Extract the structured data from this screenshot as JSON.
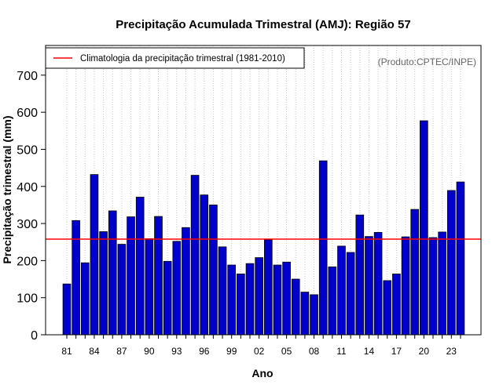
{
  "chart_data": {
    "type": "bar",
    "title": "Precipitação Acumulada Trimestral (AMJ): Região 57",
    "xlabel": "Ano",
    "ylabel": "Precipitação trimestral (mm)",
    "source_note": "(Produto:CPTEC/INPE)",
    "ylim": [
      0,
      780
    ],
    "y_ticks": [
      0,
      100,
      200,
      300,
      400,
      500,
      600,
      700
    ],
    "grid": "vertical dotted",
    "legend_position": "top-left",
    "legend": [
      {
        "label": "Climatologia da precipitação trimestral (1981-2010)",
        "color": "#ff0000",
        "kind": "line"
      }
    ],
    "bar_color": "#0000cd",
    "climatology": 258,
    "climatology_color": "#ff0000",
    "years": [
      1981,
      1982,
      1983,
      1984,
      1985,
      1986,
      1987,
      1988,
      1989,
      1990,
      1991,
      1992,
      1993,
      1994,
      1995,
      1996,
      1997,
      1998,
      1999,
      2000,
      2001,
      2002,
      2003,
      2004,
      2005,
      2006,
      2007,
      2008,
      2009,
      2010,
      2011,
      2012,
      2013,
      2014,
      2015,
      2016,
      2017,
      2018,
      2019,
      2020,
      2021,
      2022,
      2023,
      2024
    ],
    "values": [
      137,
      308,
      194,
      432,
      278,
      334,
      244,
      318,
      371,
      259,
      319,
      198,
      252,
      289,
      430,
      377,
      350,
      237,
      188,
      164,
      192,
      208,
      256,
      188,
      196,
      150,
      115,
      108,
      469,
      183,
      239,
      222,
      323,
      265,
      276,
      146,
      164,
      264,
      338,
      577,
      262,
      277,
      389,
      412
    ],
    "x_tick_labels": [
      {
        "year": 1981,
        "label": "81"
      },
      {
        "year": 1984,
        "label": "84"
      },
      {
        "year": 1987,
        "label": "87"
      },
      {
        "year": 1990,
        "label": "90"
      },
      {
        "year": 1993,
        "label": "93"
      },
      {
        "year": 1996,
        "label": "96"
      },
      {
        "year": 1999,
        "label": "99"
      },
      {
        "year": 2002,
        "label": "02"
      },
      {
        "year": 2005,
        "label": "05"
      },
      {
        "year": 2008,
        "label": "08"
      },
      {
        "year": 2011,
        "label": "11"
      },
      {
        "year": 2014,
        "label": "14"
      },
      {
        "year": 2017,
        "label": "17"
      },
      {
        "year": 2020,
        "label": "20"
      },
      {
        "year": 2023,
        "label": "23"
      }
    ]
  }
}
